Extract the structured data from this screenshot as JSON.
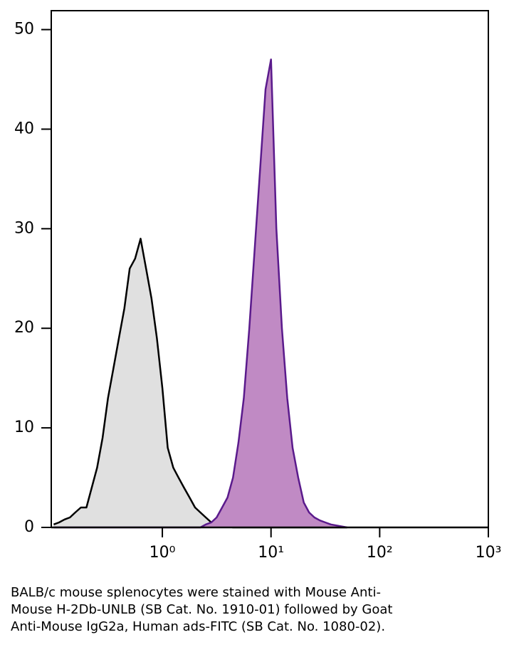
{
  "chart_data": {
    "type": "area",
    "x": [
      0.1,
      0.112,
      0.126,
      0.141,
      0.158,
      0.178,
      0.2,
      0.224,
      0.251,
      0.282,
      0.316,
      0.355,
      0.398,
      0.447,
      0.501,
      0.562,
      0.631,
      0.708,
      0.794,
      0.891,
      1,
      1.12,
      1.26,
      1.41,
      1.58,
      1.78,
      2,
      2.24,
      2.51,
      2.82,
      3.16,
      3.55,
      3.98,
      4.47,
      5.01,
      5.62,
      6.31,
      7.08,
      7.94,
      8.91,
      10,
      11.2,
      12.6,
      14.1,
      15.8,
      17.8,
      20,
      22.4,
      25.1,
      28.2,
      31.6,
      35.5,
      39.8,
      44.7,
      50.1
    ],
    "series": [
      {
        "color": "#000000",
        "fill": "#e0e0e0",
        "values": [
          0.3,
          0.5,
          0.8,
          1,
          1.5,
          2,
          2,
          4,
          6,
          9,
          13,
          16,
          19,
          22,
          26,
          27,
          29,
          26,
          23,
          19,
          14,
          8,
          6,
          5,
          4,
          3,
          2,
          1.5,
          1,
          0.5,
          0.3,
          0.2,
          0.1,
          0,
          0,
          0,
          0,
          0,
          0,
          0,
          0,
          0,
          0,
          0,
          0,
          0,
          0,
          0,
          0,
          0,
          0,
          0,
          0,
          0,
          0
        ]
      },
      {
        "color": "#5a1a8c",
        "fill": "#c08ac4",
        "values": [
          0,
          0,
          0,
          0,
          0,
          0,
          0,
          0,
          0,
          0,
          0,
          0,
          0,
          0,
          0,
          0,
          0,
          0,
          0,
          0,
          0,
          0,
          0,
          0,
          0,
          0,
          0,
          0,
          0.3,
          0.5,
          1,
          2,
          3,
          5,
          8.5,
          13,
          20,
          28,
          36,
          44,
          47,
          30,
          20,
          13,
          8,
          5,
          2.5,
          1.5,
          1,
          0.7,
          0.5,
          0.3,
          0.2,
          0.1,
          0
        ]
      }
    ],
    "xscale": "log",
    "xlim": [
      0.095,
      1000
    ],
    "xticks": [
      {
        "value": 1,
        "label": "10⁰"
      },
      {
        "value": 10,
        "label": "10¹"
      },
      {
        "value": 100,
        "label": "10²"
      },
      {
        "value": 1000,
        "label": "10³"
      }
    ],
    "ylim": [
      0,
      51.9
    ],
    "yticks": [
      0,
      10,
      20,
      30,
      40,
      50
    ],
    "caption": [
      "BALB/c mouse splenocytes were stained with Mouse Anti-",
      "Mouse H-2Db-UNLB (SB Cat. No. 1910-01) followed by Goat",
      "Anti-Mouse IgG2a, Human ads-FITC (SB Cat. No. 1080-02)."
    ]
  }
}
